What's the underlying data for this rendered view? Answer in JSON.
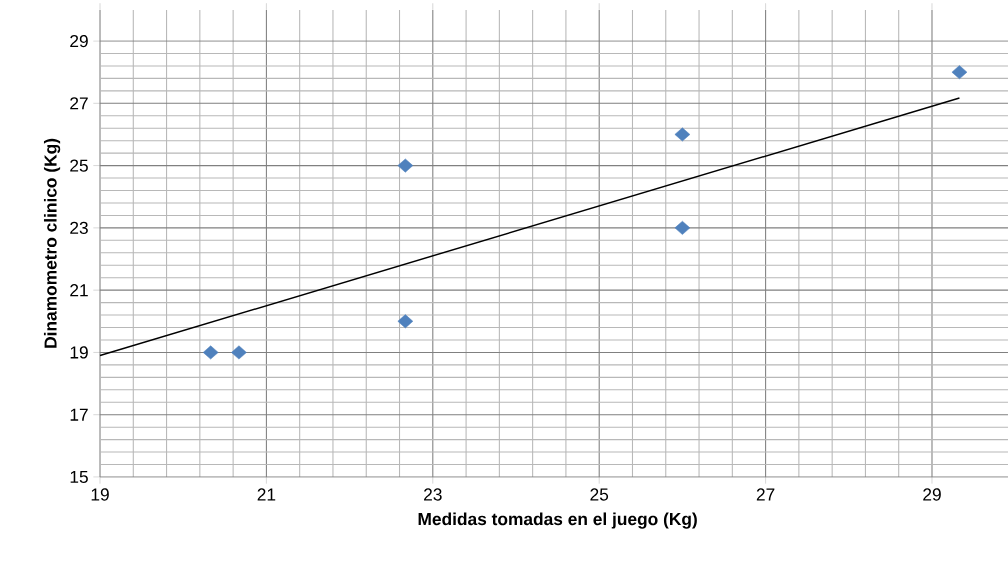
{
  "chart_data": {
    "type": "scatter",
    "xlabel": "Medidas tomadas en el juego (Kg)",
    "ylabel": "Dinamometro clinico (Kg)",
    "xlim": [
      19,
      30
    ],
    "ylim": [
      15,
      30
    ],
    "xticks": [
      19,
      21,
      23,
      25,
      27,
      29
    ],
    "yticks": [
      15,
      17,
      19,
      21,
      23,
      25,
      27,
      29
    ],
    "grid": true,
    "marker": "diamond",
    "series": [
      {
        "color": "#4f81bd",
        "x": [
          20.33,
          20.67,
          22.67,
          22.67,
          26,
          26,
          29.33
        ],
        "values": [
          19,
          19,
          25,
          20,
          26,
          23,
          28
        ]
      },
      {
        "type": "line",
        "color": "#000000",
        "marker": "none",
        "x": [
          19,
          29.33
        ],
        "values": [
          18.9,
          27.17
        ]
      }
    ]
  }
}
